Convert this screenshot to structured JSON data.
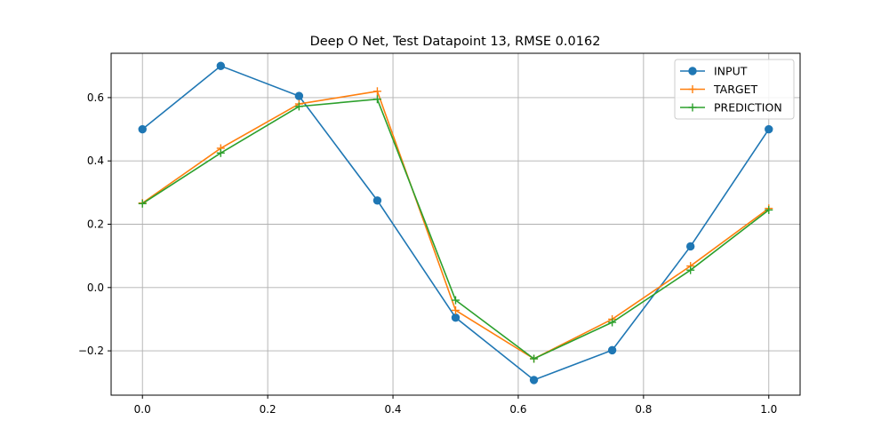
{
  "chart_data": {
    "type": "line",
    "title": "Deep O Net, Test Datapoint 13, RMSE 0.0162",
    "xlabel": "",
    "ylabel": "",
    "xlim": [
      -0.05,
      1.05
    ],
    "ylim": [
      -0.34,
      0.74
    ],
    "x_ticks": [
      0.0,
      0.2,
      0.4,
      0.6,
      0.8,
      1.0
    ],
    "x_tick_labels": [
      "0.0",
      "0.2",
      "0.4",
      "0.6",
      "0.8",
      "1.0"
    ],
    "y_ticks": [
      -0.2,
      0.0,
      0.2,
      0.4,
      0.6
    ],
    "y_tick_labels": [
      "−0.2",
      "0.0",
      "0.2",
      "0.4",
      "0.6"
    ],
    "grid": true,
    "legend_position": "top-right",
    "x": [
      0.0,
      0.125,
      0.25,
      0.375,
      0.5,
      0.625,
      0.75,
      0.875,
      1.0
    ],
    "series": [
      {
        "name": "INPUT",
        "color": "#1f77b4",
        "marker": "circle",
        "values": [
          0.5,
          0.7,
          0.605,
          0.275,
          -0.095,
          -0.292,
          -0.198,
          0.13,
          0.5
        ]
      },
      {
        "name": "TARGET",
        "color": "#ff7f0e",
        "marker": "plus",
        "values": [
          0.267,
          0.44,
          0.58,
          0.62,
          -0.072,
          -0.225,
          -0.1,
          0.068,
          0.25
        ]
      },
      {
        "name": "PREDICTION",
        "color": "#2ca02c",
        "marker": "plus",
        "values": [
          0.265,
          0.425,
          0.572,
          0.595,
          -0.04,
          -0.225,
          -0.11,
          0.055,
          0.245
        ]
      }
    ]
  }
}
